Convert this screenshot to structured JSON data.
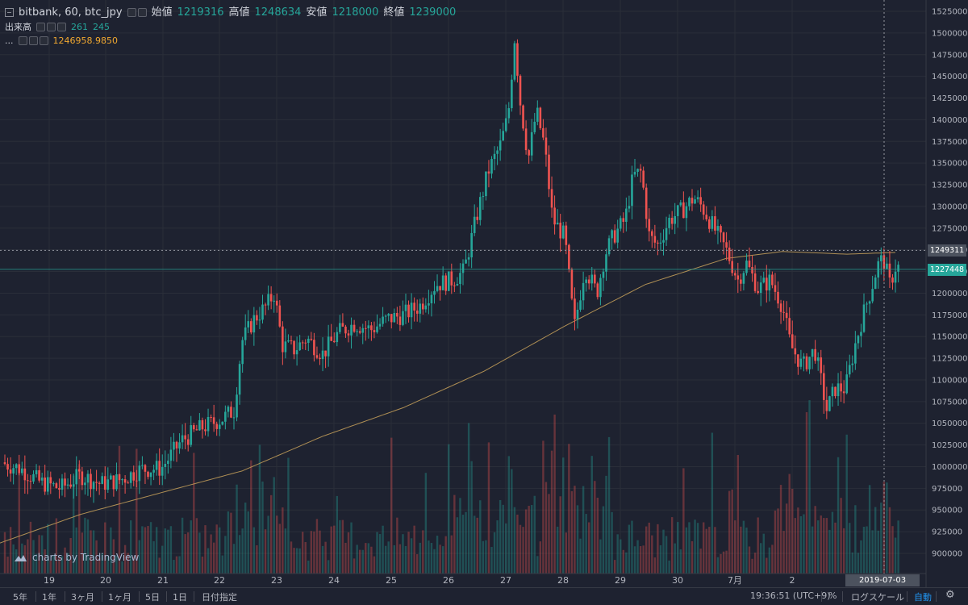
{
  "legend": {
    "symbol": "bitbank, 60, btc_jpy",
    "open_label": "始値",
    "open_value": "1219316",
    "high_label": "高値",
    "high_value": "1248634",
    "low_label": "安値",
    "low_value": "1218000",
    "close_label": "終値",
    "close_value": "1239000",
    "volume_label": "出来高",
    "volume_value_1": "261",
    "volume_value_2": "245",
    "ma_label": "...",
    "ma_value": "1246958.9850"
  },
  "price_tags": {
    "crosshair": "1249311",
    "last": "1227448"
  },
  "time_tag": "2019-07-03 14:00:00",
  "logo_text": "charts by TradingView",
  "bottom_bar": {
    "ranges": [
      "5年",
      "1年",
      "3ヶ月",
      "1ヶ月",
      "5日",
      "1日",
      "日付指定"
    ],
    "clock": "19:36:51 (UTC+9)",
    "percent": "%",
    "log": "ログスケール",
    "auto": "自動"
  },
  "colors": {
    "up": "#26a69a",
    "down": "#ef5350",
    "ma": "#c9a25a",
    "background": "#1e2230",
    "grid": "#2a2e39"
  },
  "icons": {
    "settings": "gear-icon",
    "collapse": "minus-square-icon",
    "logo": "tradingview-cloud-icon"
  },
  "chart_data": {
    "type": "candlestick",
    "interval": "60",
    "y_axis": {
      "position": "right",
      "ylim": [
        880000,
        1530000
      ],
      "ticks": [
        900000,
        925000,
        950000,
        975000,
        1000000,
        1025000,
        1050000,
        1075000,
        1100000,
        1125000,
        1150000,
        1175000,
        1200000,
        1225000,
        1250000,
        1275000,
        1300000,
        1325000,
        1350000,
        1375000,
        1400000,
        1425000,
        1450000,
        1475000,
        1500000,
        1525000
      ]
    },
    "x_axis": {
      "tick_labels": [
        "19",
        "20",
        "21",
        "22",
        "23",
        "24",
        "25",
        "26",
        "27",
        "28",
        "29",
        "30",
        "7月",
        "2"
      ]
    },
    "crosshair_price": 1249311,
    "last_price": 1227448,
    "price_keypoints": [
      [
        0,
        1005000
      ],
      [
        25,
        998000
      ],
      [
        50,
        982000
      ],
      [
        75,
        975000
      ],
      [
        100,
        990000
      ],
      [
        125,
        980000
      ],
      [
        150,
        985000
      ],
      [
        175,
        997000
      ],
      [
        200,
        998000
      ],
      [
        225,
        1030000
      ],
      [
        250,
        1045000
      ],
      [
        275,
        1055000
      ],
      [
        290,
        1065000
      ],
      [
        300,
        1145000
      ],
      [
        315,
        1170000
      ],
      [
        330,
        1185000
      ],
      [
        340,
        1200000
      ],
      [
        350,
        1140000
      ],
      [
        365,
        1135000
      ],
      [
        380,
        1148000
      ],
      [
        400,
        1130000
      ],
      [
        420,
        1155000
      ],
      [
        440,
        1165000
      ],
      [
        460,
        1158000
      ],
      [
        480,
        1170000
      ],
      [
        500,
        1175000
      ],
      [
        520,
        1185000
      ],
      [
        540,
        1210000
      ],
      [
        560,
        1215000
      ],
      [
        575,
        1225000
      ],
      [
        590,
        1285000
      ],
      [
        605,
        1340000
      ],
      [
        620,
        1370000
      ],
      [
        630,
        1405000
      ],
      [
        638,
        1495000
      ],
      [
        645,
        1420000
      ],
      [
        655,
        1355000
      ],
      [
        665,
        1410000
      ],
      [
        675,
        1370000
      ],
      [
        685,
        1285000
      ],
      [
        700,
        1265000
      ],
      [
        712,
        1160000
      ],
      [
        725,
        1230000
      ],
      [
        740,
        1200000
      ],
      [
        750,
        1245000
      ],
      [
        760,
        1265000
      ],
      [
        775,
        1285000
      ],
      [
        785,
        1335000
      ],
      [
        795,
        1340000
      ],
      [
        805,
        1265000
      ],
      [
        815,
        1255000
      ],
      [
        830,
        1285000
      ],
      [
        845,
        1295000
      ],
      [
        860,
        1310000
      ],
      [
        870,
        1300000
      ],
      [
        885,
        1275000
      ],
      [
        900,
        1250000
      ],
      [
        915,
        1215000
      ],
      [
        925,
        1235000
      ],
      [
        940,
        1205000
      ],
      [
        955,
        1215000
      ],
      [
        970,
        1185000
      ],
      [
        980,
        1140000
      ],
      [
        995,
        1115000
      ],
      [
        1010,
        1135000
      ],
      [
        1025,
        1065000
      ],
      [
        1035,
        1090000
      ],
      [
        1048,
        1090000
      ],
      [
        1060,
        1140000
      ],
      [
        1070,
        1175000
      ],
      [
        1080,
        1205000
      ],
      [
        1088,
        1232000
      ],
      [
        1095,
        1240000
      ],
      [
        1103,
        1210000
      ],
      [
        1110,
        1230000
      ]
    ],
    "moving_average_keypoints": [
      [
        0,
        912000
      ],
      [
        100,
        945000
      ],
      [
        200,
        970000
      ],
      [
        300,
        995000
      ],
      [
        400,
        1035000
      ],
      [
        500,
        1068000
      ],
      [
        600,
        1110000
      ],
      [
        700,
        1162000
      ],
      [
        800,
        1210000
      ],
      [
        900,
        1240000
      ],
      [
        970,
        1248000
      ],
      [
        1050,
        1245000
      ],
      [
        1110,
        1246958
      ]
    ]
  }
}
